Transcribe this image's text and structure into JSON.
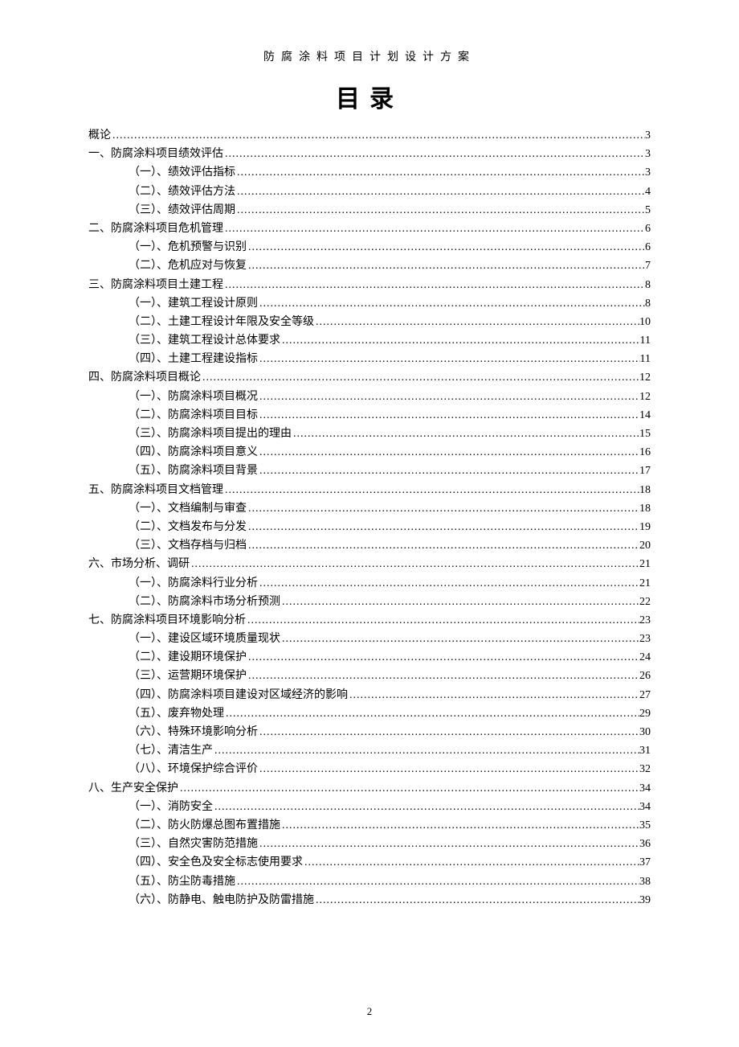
{
  "header": "防腐涂料项目计划设计方案",
  "title": "目录",
  "pageNumber": "2",
  "entries": [
    {
      "level": 0,
      "label": "概论",
      "page": "3"
    },
    {
      "level": 0,
      "label": "一、防腐涂料项目绩效评估",
      "page": "3"
    },
    {
      "level": 1,
      "label": "（一）、绩效评估指标",
      "page": "3"
    },
    {
      "level": 1,
      "label": "（二）、绩效评估方法",
      "page": "4"
    },
    {
      "level": 1,
      "label": "（三）、绩效评估周期",
      "page": "5"
    },
    {
      "level": 0,
      "label": "二、防腐涂料项目危机管理",
      "page": "6"
    },
    {
      "level": 1,
      "label": "（一）、危机预警与识别",
      "page": "6"
    },
    {
      "level": 1,
      "label": "（二）、危机应对与恢复",
      "page": "7"
    },
    {
      "level": 0,
      "label": "三、防腐涂料项目土建工程",
      "page": "8"
    },
    {
      "level": 1,
      "label": "（一）、建筑工程设计原则",
      "page": "8"
    },
    {
      "level": 1,
      "label": "（二）、土建工程设计年限及安全等级",
      "page": "10"
    },
    {
      "level": 1,
      "label": "（三）、建筑工程设计总体要求",
      "page": "11"
    },
    {
      "level": 1,
      "label": "（四）、土建工程建设指标",
      "page": "11"
    },
    {
      "level": 0,
      "label": "四、防腐涂料项目概论",
      "page": "12"
    },
    {
      "level": 1,
      "label": "（一）、防腐涂料项目概况",
      "page": "12"
    },
    {
      "level": 1,
      "label": "（二）、防腐涂料项目目标",
      "page": "14"
    },
    {
      "level": 1,
      "label": "（三）、防腐涂料项目提出的理由",
      "page": "15"
    },
    {
      "level": 1,
      "label": "（四）、防腐涂料项目意义",
      "page": "16"
    },
    {
      "level": 1,
      "label": "（五）、防腐涂料项目背景",
      "page": "17"
    },
    {
      "level": 0,
      "label": "五、防腐涂料项目文档管理",
      "page": "18"
    },
    {
      "level": 1,
      "label": "（一）、文档编制与审查",
      "page": "18"
    },
    {
      "level": 1,
      "label": "（二）、文档发布与分发",
      "page": "19"
    },
    {
      "level": 1,
      "label": "（三）、文档存档与归档",
      "page": "20"
    },
    {
      "level": 0,
      "label": "六、市场分析、调研",
      "page": "21"
    },
    {
      "level": 1,
      "label": "（一）、防腐涂料行业分析",
      "page": "21"
    },
    {
      "level": 1,
      "label": "（二）、防腐涂料市场分析预测",
      "page": "22"
    },
    {
      "level": 0,
      "label": "七、防腐涂料项目环境影响分析",
      "page": "23"
    },
    {
      "level": 1,
      "label": "（一）、建设区域环境质量现状",
      "page": "23"
    },
    {
      "level": 1,
      "label": "（二）、建设期环境保护",
      "page": "24"
    },
    {
      "level": 1,
      "label": "（三）、运营期环境保护",
      "page": "26"
    },
    {
      "level": 1,
      "label": "（四）、防腐涂料项目建设对区域经济的影响",
      "page": "27"
    },
    {
      "level": 1,
      "label": "（五）、废弃物处理",
      "page": "29"
    },
    {
      "level": 1,
      "label": "（六）、特殊环境影响分析",
      "page": "30"
    },
    {
      "level": 1,
      "label": "（七）、清洁生产",
      "page": "31"
    },
    {
      "level": 1,
      "label": "（八）、环境保护综合评价",
      "page": "32"
    },
    {
      "level": 0,
      "label": "八、生产安全保护",
      "page": "34"
    },
    {
      "level": 1,
      "label": "（一）、消防安全",
      "page": "34"
    },
    {
      "level": 1,
      "label": "（二）、防火防爆总图布置措施",
      "page": "35"
    },
    {
      "level": 1,
      "label": "（三）、自然灾害防范措施",
      "page": "36"
    },
    {
      "level": 1,
      "label": "（四）、安全色及安全标志使用要求",
      "page": "37"
    },
    {
      "level": 1,
      "label": "（五）、防尘防毒措施",
      "page": "38"
    },
    {
      "level": 1,
      "label": "（六）、防静电、触电防护及防雷措施",
      "page": "39"
    }
  ]
}
